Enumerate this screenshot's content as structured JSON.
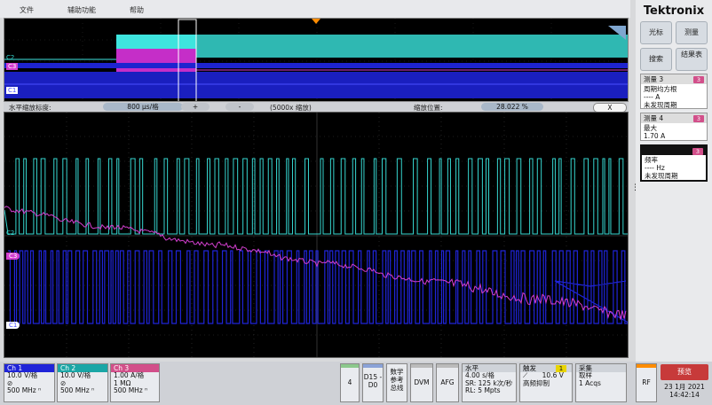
{
  "menu": {
    "file": "文件",
    "utility": "辅助功能",
    "help": "帮助"
  },
  "zoom": {
    "label": "水平缩放标度:",
    "scale_value": "800 μs/格",
    "plus": "+",
    "minus": "-",
    "factor": "(5000x 缩放)",
    "position_label": "缩放位置:",
    "position_value": "28.022 %",
    "close": "X"
  },
  "channels_tags": {
    "c1": "C1",
    "c2": "C2",
    "c3": "C3"
  },
  "colors": {
    "ch1": "#1f24d8",
    "ch2": "#36d6d0",
    "ch3": "#d43fd0",
    "accent": "#ff8c00"
  },
  "side": {
    "brand": "Tektronix",
    "cursor_btn": "光标",
    "measure_btn": "测量",
    "search_btn": "搜索",
    "results_btn": "结果表",
    "meas3": {
      "title": "测量 3",
      "badge": "3",
      "line1": "周期均方根",
      "line2": "---- A",
      "line3": "未发现周期"
    },
    "meas4": {
      "title": "测量 4",
      "badge": "3",
      "line1": "最大",
      "line2": "1.70 A"
    },
    "meas5": {
      "badge": "3",
      "line1": "频率",
      "line2": "---- Hz",
      "line3": "未发现周期"
    }
  },
  "bottom": {
    "ch1": {
      "title": "Ch 1",
      "scale": "10.0 V/格",
      "coupling": "⊘",
      "bw": "500 MHz ⁿ"
    },
    "ch2": {
      "title": "Ch 2",
      "scale": "10.0 V/格",
      "coupling": "⊘",
      "bw": "500 MHz ⁿ"
    },
    "ch3": {
      "title": "Ch 3",
      "scale": "1.00 A/格",
      "coupling": "1 MΩ",
      "bw": "500 MHz ⁿ"
    },
    "btn4": "4",
    "d15": "D15 -D0",
    "math": "数学 参考 总线",
    "dvm": "DVM",
    "afg": "AFG",
    "horizontal": {
      "title": "水平",
      "l1": "4.00 s/格",
      "l2": "SR: 125 k次/秒",
      "l3": "RL: 5 Mpts"
    },
    "trigger": {
      "title": "触发",
      "badge": "1",
      "slope": "⟋",
      "level": "10.6 V",
      "mode": "高频抑制"
    },
    "acquire": {
      "title": "采集",
      "l1": "取样",
      "l2": "1 Acqs"
    },
    "rf": "RF",
    "preview": "预览",
    "date": "23 1月 2021",
    "time": "14:42:14"
  }
}
